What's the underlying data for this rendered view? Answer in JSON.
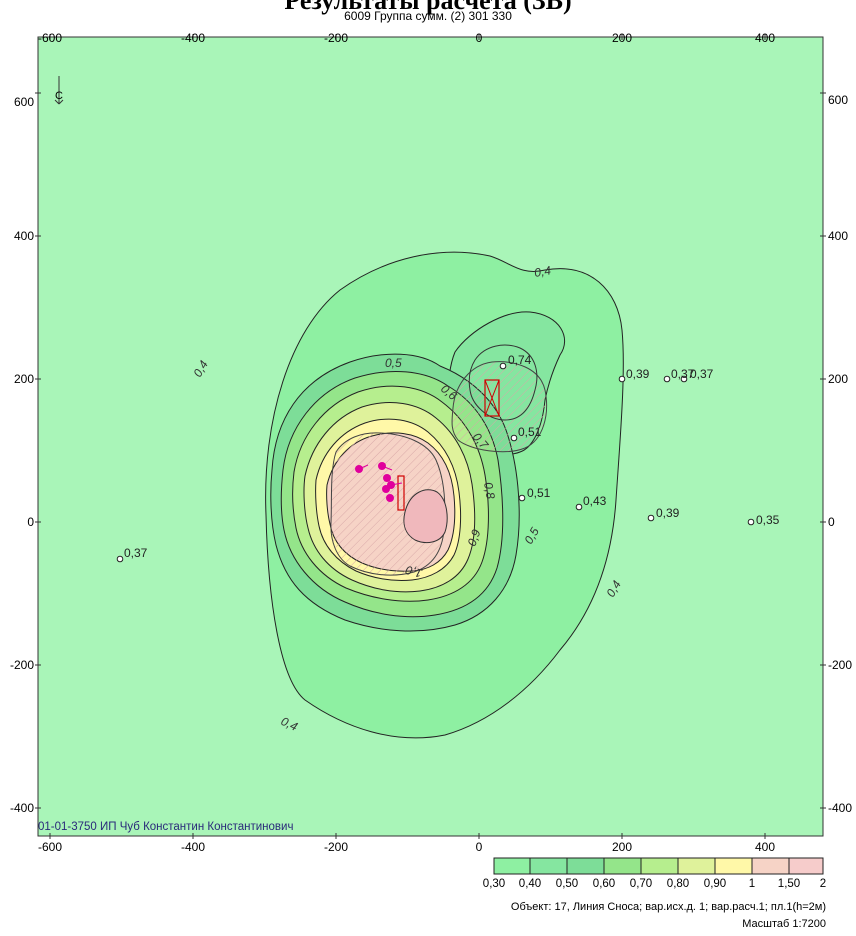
{
  "header": {
    "title": "Результаты расчета (ЗВ)",
    "subtitle": "6009 Группа сумм. (2) 301 330"
  },
  "map": {
    "x_axis_ticks": [
      "-600",
      "-400",
      "-200",
      "0",
      "200",
      "400"
    ],
    "y_axis_ticks": [
      "600",
      "400",
      "200",
      "0",
      "-200",
      "-400"
    ],
    "north_marker": "С",
    "contour_labels": [
      "0,4",
      "0,4",
      "0,4",
      "0,4",
      "0,5",
      "0,5",
      "0,6",
      "0,7",
      "0,8",
      "0,9",
      "1,0"
    ],
    "point_labels": [
      "0,74",
      "0,39",
      "0,37",
      "0,37",
      "0,51",
      "0,51",
      "0,43",
      "0,39",
      "0,35",
      "0,37"
    ],
    "org_label": "01-01-3750 ИП Чуб Константин Константинович",
    "background_color": "#a9f5b8"
  },
  "legend": {
    "values": [
      "0,30",
      "0,40",
      "0,50",
      "0,60",
      "0,70",
      "0,80",
      "0,90",
      "1",
      "1,50",
      "2"
    ],
    "colors": [
      "#8ef0a2",
      "#85e6a0",
      "#7ddd98",
      "#94e58a",
      "#b6ee8e",
      "#dff29b",
      "#fff8a8",
      "#f6d3c6",
      "#f6cccb"
    ]
  },
  "footer": {
    "object_info": "Объект: 17, Линия Сноса; вар.исх.д. 1; вар.расч.1; пл.1(h=2м)",
    "scale": "Масштаб 1:7200"
  }
}
